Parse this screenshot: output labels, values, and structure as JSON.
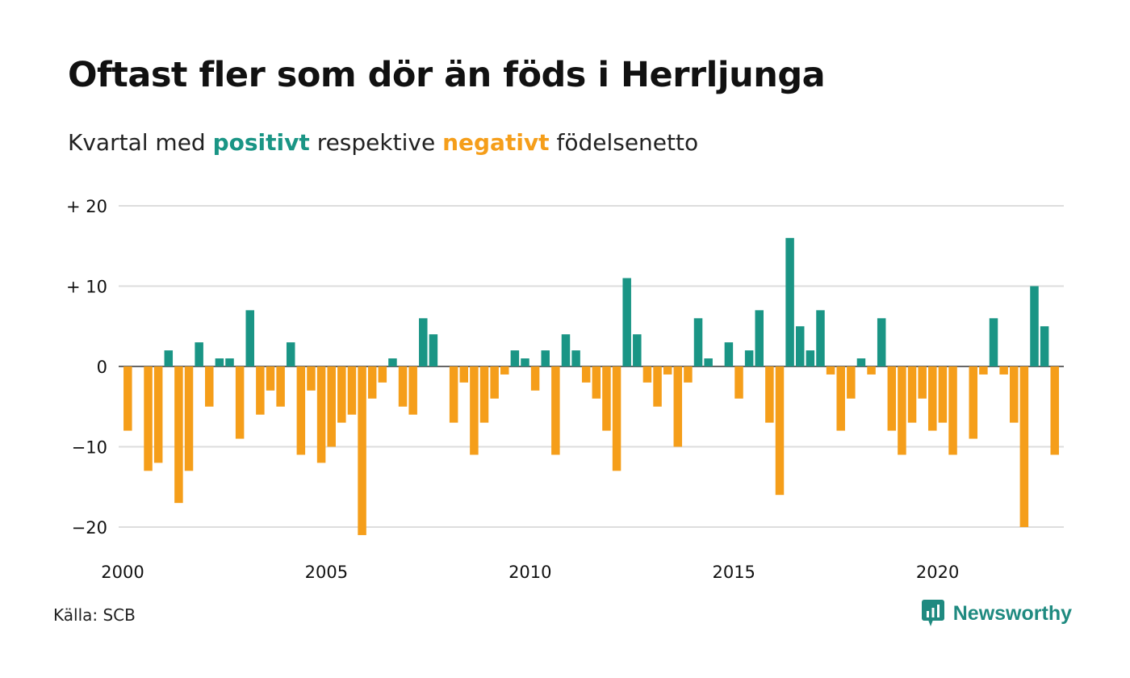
{
  "header": {
    "title": "Oftast fler som dör än föds i Herrljunga",
    "subtitle_prefix": "Kvartal med",
    "subtitle_positive": "positivt",
    "subtitle_middle": "respektive",
    "subtitle_negative": "negativt",
    "subtitle_suffix": "födelsenetto"
  },
  "footer": {
    "source": "Källa: SCB",
    "brand": "Newsworthy",
    "brand_icon": "newsworthy-logo-icon"
  },
  "colors": {
    "positive": "#1a9585",
    "negative": "#f59e1a",
    "grid": "#dddddd",
    "text": "#111111",
    "brand": "#1f8a80"
  },
  "chart_data": {
    "type": "bar",
    "start_year": 2000,
    "values": [
      -8,
      0,
      -13,
      -12,
      2,
      -17,
      -13,
      3,
      -5,
      1,
      1,
      -9,
      7,
      -6,
      -3,
      -5,
      3,
      -11,
      -3,
      -12,
      -10,
      -7,
      -6,
      -21,
      -4,
      -2,
      1,
      -5,
      -6,
      6,
      4,
      0,
      -7,
      -2,
      -11,
      -7,
      -4,
      -1,
      2,
      1,
      -3,
      2,
      -11,
      4,
      2,
      -2,
      -4,
      -8,
      -13,
      11,
      4,
      -2,
      -5,
      -1,
      -10,
      -2,
      6,
      1,
      0,
      3,
      -4,
      2,
      7,
      -7,
      -16,
      16,
      5,
      2,
      7,
      -1,
      -8,
      -4,
      1,
      -1,
      6,
      -8,
      -11,
      -7,
      -4,
      -8,
      -7,
      -11,
      0,
      -9,
      -1,
      6,
      -1,
      -7,
      -20,
      10,
      5,
      -11
    ],
    "ylim": [
      -23,
      21
    ],
    "yticks": [
      20,
      10,
      0,
      -10,
      -20
    ],
    "ytick_labels": [
      "+ 20",
      "+ 10",
      "0",
      "−10",
      "−20"
    ],
    "xticks": [
      2000,
      2005,
      2010,
      2015,
      2020
    ],
    "xtick_labels": [
      "2000",
      "2005",
      "2010",
      "2015",
      "2020"
    ],
    "grid": true,
    "legend": "none"
  }
}
